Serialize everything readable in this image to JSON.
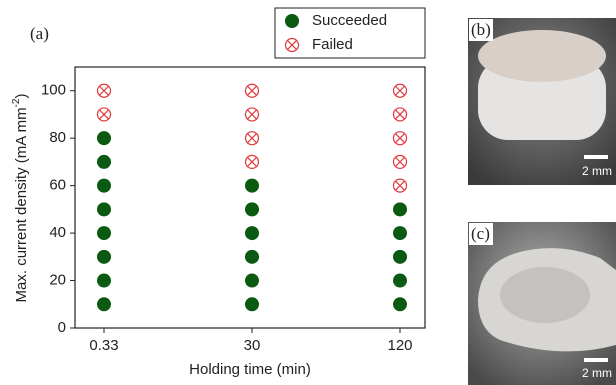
{
  "chart_data": {
    "type": "categorical-scatter",
    "panel_label": "(a)",
    "xlabel": "Holding time (min)",
    "ylabel": {
      "text": "Max. current density (mA mm",
      "superscript": "-2",
      "suffix": ")"
    },
    "categories": [
      "0.33",
      "30",
      "120"
    ],
    "series": [
      {
        "name": "Succeeded",
        "color": "#0b5a12",
        "marker": "filled-circle",
        "values": [
          [
            10,
            20,
            30,
            40,
            50,
            60,
            70,
            80
          ],
          [
            10,
            20,
            30,
            40,
            50,
            60
          ],
          [
            10,
            20,
            30,
            40,
            50
          ]
        ]
      },
      {
        "name": "Failed",
        "color": "#e0393b",
        "marker": "crossed-circle",
        "values": [
          [
            90,
            100
          ],
          [
            70,
            80,
            90,
            100
          ],
          [
            60,
            70,
            80,
            90,
            100
          ]
        ]
      }
    ],
    "ylim": [
      0,
      110
    ],
    "yticks": [
      0,
      20,
      40,
      60,
      80,
      100
    ]
  },
  "photos": [
    {
      "label": "(b)",
      "scale_bar": "2 mm"
    },
    {
      "label": "(c)",
      "scale_bar": "2 mm"
    }
  ]
}
